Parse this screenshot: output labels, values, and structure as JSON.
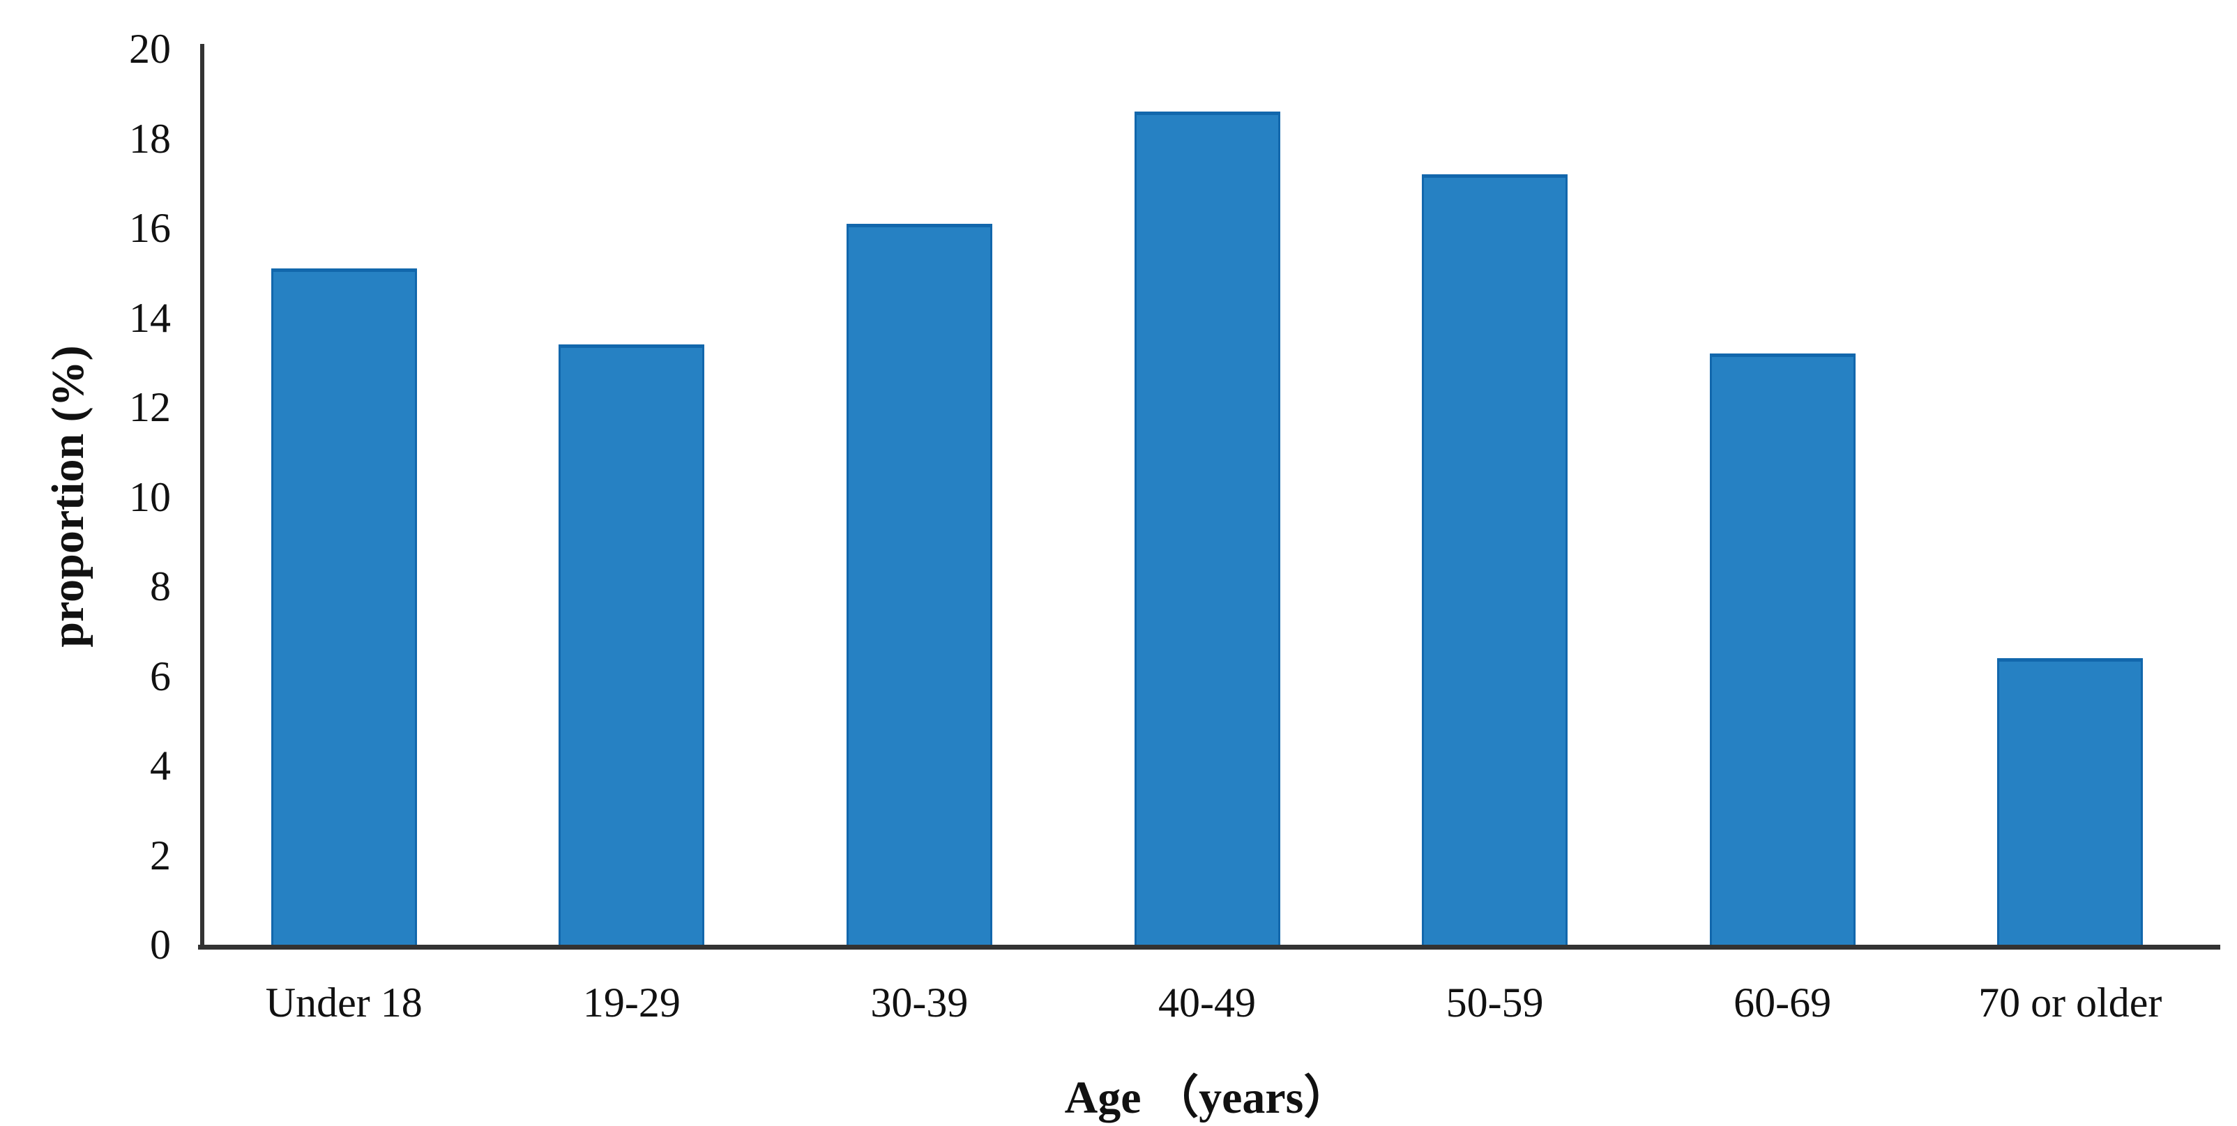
{
  "figure": {
    "background_color": "#ffffff",
    "bar_color": "#2681C3",
    "bar_edge_color": "#1267AC",
    "axis_color": "#333333",
    "text_color": "#111111"
  },
  "chart_data": {
    "type": "bar",
    "title": "",
    "xlabel": "Age （years）",
    "ylabel": "proportion (%)",
    "categories": [
      "Under 18",
      "19-29",
      "30-39",
      "40-49",
      "50-59",
      "60-69",
      "70 or older"
    ],
    "values": [
      15.1,
      13.4,
      16.1,
      18.6,
      17.2,
      13.2,
      6.4
    ],
    "series": [
      {
        "name": "proportion",
        "values": [
          15.1,
          13.4,
          16.1,
          18.6,
          17.2,
          13.2,
          6.4
        ]
      }
    ],
    "ylim": [
      0,
      20
    ],
    "yticks": [
      0,
      2,
      4,
      6,
      8,
      10,
      12,
      14,
      16,
      18,
      20
    ],
    "grid": false,
    "legend": null
  }
}
